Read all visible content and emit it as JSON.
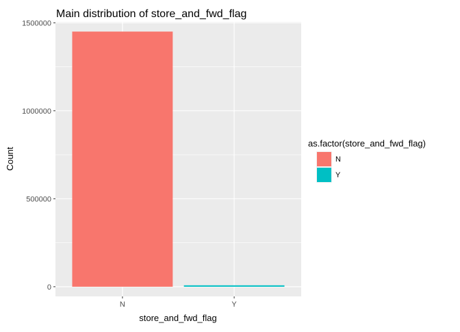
{
  "chart_data": {
    "type": "bar",
    "title": "Main distribution of store_and_fwd_flag",
    "xlabel": "store_and_fwd_flag",
    "ylabel": "Count",
    "categories": [
      "N",
      "Y"
    ],
    "values": [
      1450000,
      8000
    ],
    "colors": [
      "#F8766D",
      "#00BFC4"
    ],
    "ylim": [
      -55000,
      1505000
    ],
    "yticks": [
      0,
      500000,
      1000000,
      1500000
    ],
    "ytick_labels": [
      "0",
      "500000",
      "1000000",
      "1500000"
    ],
    "grid": true,
    "panel_background": "#EBEBEB",
    "legend": {
      "title": "as.factor(store_and_fwd_flag)",
      "position": "right",
      "entries": [
        "N",
        "Y"
      ]
    }
  }
}
